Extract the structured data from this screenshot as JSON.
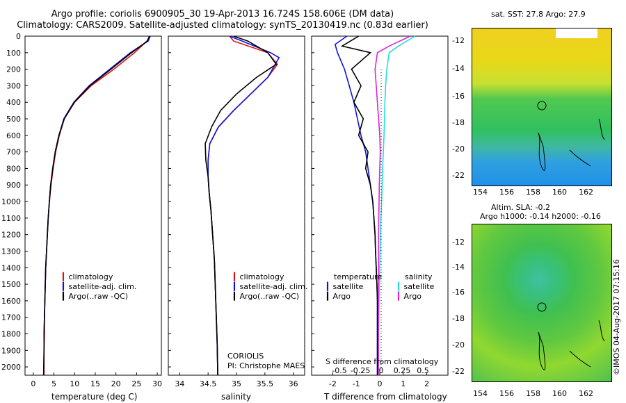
{
  "header": {
    "title_line1": "Argo profile: coriolis 6900905_30 19-Apr-2013 16.724S 158.606E (DM data)",
    "title_line2": "Climatology: CARS2009. Satellite-adjusted climatology: synTS_20130419.nc (0.83d earlier)"
  },
  "colors": {
    "climatology": "#dd1111",
    "satellite": "#1111dd",
    "argo": "#000000",
    "sal_sat": "#22dddd",
    "sal_argo": "#dd22dd"
  },
  "depth_axis": {
    "ticks": [
      "0",
      "100",
      "200",
      "300",
      "400",
      "500",
      "600",
      "700",
      "800",
      "900",
      "1000",
      "1100",
      "1200",
      "1300",
      "1400",
      "1500",
      "1600",
      "1700",
      "1800",
      "1900",
      "2000"
    ]
  },
  "panels": {
    "temperature": {
      "xlabel": "temperature (deg C)",
      "xticks": [
        "0",
        "5",
        "10",
        "15",
        "20",
        "25",
        "30"
      ],
      "legend": [
        "climatology",
        "satellite-adj. clim.",
        "Argo(..raw -QC)"
      ]
    },
    "salinity": {
      "xlabel": "salinity",
      "xticks": [
        "34",
        "34.5",
        "35",
        "35.5",
        "36"
      ],
      "legend": [
        "climatology",
        "satellite-adj. clim.",
        "Argo(..raw -QC)"
      ],
      "note1": "CORIOLIS",
      "note2": "PI: Christophe MAES"
    },
    "difference": {
      "xlabel": "T difference from climatology",
      "top_label": "S difference from climatology",
      "xticks_T": [
        "-2",
        "-1",
        "0",
        "1",
        "2"
      ],
      "xticks_S": [
        "-0.5",
        "-0.25",
        "0",
        "0.25",
        "0.5"
      ],
      "legend_temp_title": "temperature",
      "legend_sal_title": "salinity",
      "legend_temp": [
        "satellite",
        "Argo"
      ],
      "legend_sal": [
        "satellite",
        "Argo"
      ]
    }
  },
  "maps": {
    "sst": {
      "title": "sat. SST: 27.8 Argo: 27.9",
      "yticks": [
        "-12",
        "-14",
        "-16",
        "-18",
        "-20",
        "-22"
      ],
      "xticks": [
        "154",
        "156",
        "158",
        "160",
        "162"
      ]
    },
    "sla": {
      "title1": "Altim. SLA: -0.2",
      "title2": "Argo h1000: -0.14 h2000: -0.16",
      "yticks": [
        "-12",
        "-14",
        "-16",
        "-18",
        "-20",
        "-22"
      ],
      "xticks": [
        "154",
        "156",
        "158",
        "160",
        "162"
      ]
    }
  },
  "stamp": "©IMOS 04-Aug-2017 07:15:16",
  "chart_data": [
    {
      "type": "line",
      "title": "",
      "xlabel": "temperature (deg C)",
      "ylabel": "",
      "xlim": [
        -2,
        31
      ],
      "ylim": [
        2050,
        0
      ],
      "series": [
        {
          "name": "climatology",
          "x": [
            28.2,
            27.5,
            24.5,
            19.5,
            14,
            10,
            7.5,
            6.3,
            5.4,
            4.8,
            4.3,
            3.9,
            3.6,
            3.4,
            3.2,
            3.0,
            2.9,
            2.8,
            2.7,
            2.7,
            2.6,
            2.6
          ],
          "y": [
            0,
            30,
            100,
            200,
            300,
            400,
            500,
            600,
            700,
            800,
            900,
            1000,
            1100,
            1200,
            1300,
            1400,
            1500,
            1600,
            1700,
            1800,
            1900,
            2050
          ]
        },
        {
          "name": "satellite-adj. clim.",
          "x": [
            28.3,
            27.8,
            23.5,
            18.5,
            13.5,
            9.8,
            7.4,
            6.2,
            5.3,
            4.7,
            4.2,
            3.9,
            3.6,
            3.4,
            3.2,
            3.0,
            2.9,
            2.8,
            2.7,
            2.6,
            2.6,
            2.5
          ],
          "y": [
            0,
            30,
            100,
            200,
            300,
            400,
            500,
            600,
            700,
            800,
            900,
            1000,
            1100,
            1200,
            1300,
            1400,
            1500,
            1600,
            1700,
            1800,
            1900,
            2050
          ]
        },
        {
          "name": "Argo(..raw -QC)",
          "x": [
            28.1,
            27.6,
            23.8,
            18.8,
            13.7,
            9.9,
            7.5,
            6.2,
            5.3,
            4.7,
            4.2,
            3.9,
            3.6,
            3.4,
            3.2,
            3.0,
            2.9,
            2.8,
            2.7,
            2.6,
            2.6,
            2.5
          ],
          "y": [
            0,
            30,
            100,
            200,
            300,
            400,
            500,
            600,
            700,
            800,
            900,
            1000,
            1100,
            1200,
            1300,
            1400,
            1500,
            1600,
            1700,
            1800,
            1900,
            2050
          ]
        }
      ]
    },
    {
      "type": "line",
      "title": "",
      "xlabel": "salinity",
      "ylabel": "",
      "xlim": [
        33.8,
        36.2
      ],
      "ylim": [
        2050,
        0
      ],
      "series": [
        {
          "name": "climatology",
          "x": [
            34.88,
            34.95,
            35.55,
            35.72,
            35.55,
            35.25,
            34.95,
            34.68,
            34.53,
            34.5,
            34.5,
            34.52,
            34.55,
            34.57,
            34.59,
            34.61,
            34.62,
            34.63,
            34.64,
            34.65,
            34.66,
            34.67
          ],
          "y": [
            0,
            30,
            100,
            170,
            250,
            350,
            450,
            550,
            650,
            750,
            850,
            950,
            1050,
            1150,
            1250,
            1350,
            1450,
            1550,
            1650,
            1750,
            1850,
            2050
          ]
        },
        {
          "name": "satellite-adj. clim.",
          "x": [
            34.88,
            35.1,
            35.6,
            35.75,
            35.55,
            35.25,
            34.95,
            34.68,
            34.53,
            34.5,
            34.5,
            34.52,
            34.55,
            34.57,
            34.59,
            34.61,
            34.62,
            34.63,
            34.64,
            34.65,
            34.66,
            34.67
          ],
          "y": [
            0,
            30,
            100,
            130,
            250,
            350,
            450,
            550,
            650,
            750,
            850,
            950,
            1050,
            1150,
            1250,
            1350,
            1450,
            1550,
            1650,
            1750,
            1850,
            2050
          ]
        },
        {
          "name": "Argo(..raw -QC)",
          "x": [
            34.95,
            35.2,
            35.55,
            35.7,
            35.35,
            35.0,
            34.72,
            34.56,
            34.45,
            34.46,
            34.5,
            34.52,
            34.55,
            34.57,
            34.59,
            34.61,
            34.62,
            34.63,
            34.64,
            34.65,
            34.66,
            34.67
          ],
          "y": [
            0,
            30,
            100,
            170,
            250,
            350,
            450,
            550,
            650,
            750,
            850,
            950,
            1050,
            1150,
            1250,
            1350,
            1450,
            1550,
            1650,
            1750,
            1850,
            2050
          ]
        }
      ]
    },
    {
      "type": "line",
      "title": "",
      "xlabel": "T difference from climatology",
      "ylabel": "",
      "xlim": [
        -2.9,
        2.9
      ],
      "ylim": [
        2050,
        0
      ],
      "series": [
        {
          "name": "temperature satellite",
          "x": [
            -1.4,
            -1.9,
            -1.8,
            -1.5,
            -1.3,
            -1.1,
            -0.95,
            -0.8,
            -0.6,
            -0.5,
            -0.4,
            -0.3,
            -0.25,
            -0.2,
            -0.18,
            -0.15,
            -0.12,
            -0.1,
            -0.1,
            -0.1
          ],
          "y": [
            0,
            50,
            100,
            200,
            300,
            400,
            500,
            600,
            700,
            800,
            900,
            1000,
            1100,
            1200,
            1300,
            1400,
            1500,
            1600,
            1800,
            2050
          ]
        },
        {
          "name": "temperature Argo",
          "x": [
            -0.9,
            -1.6,
            -0.4,
            -1.2,
            -0.8,
            -1.1,
            -0.7,
            -0.9,
            -0.5,
            -0.6,
            -0.4,
            -0.3,
            -0.25,
            -0.2,
            -0.18,
            -0.15,
            -0.12,
            -0.1,
            -0.1,
            -0.1
          ],
          "y": [
            0,
            60,
            100,
            200,
            300,
            400,
            500,
            600,
            700,
            800,
            900,
            1000,
            1100,
            1200,
            1300,
            1400,
            1500,
            1600,
            1800,
            2050
          ]
        },
        {
          "name": "salinity satellite",
          "x": [
            1.5,
            0.8,
            0.4,
            0.3,
            0.25,
            0.22,
            0.2,
            0.18,
            0.15,
            0.12,
            0.1,
            0.08,
            0.05,
            0.03,
            0.0,
            -0.03,
            -0.05,
            -0.05,
            -0.05
          ],
          "y": [
            0,
            60,
            100,
            200,
            300,
            400,
            500,
            600,
            700,
            800,
            900,
            1000,
            1100,
            1200,
            1400,
            1600,
            1800,
            1900,
            2050
          ]
        },
        {
          "name": "salinity Argo",
          "x": [
            1.3,
            0.4,
            -0.1,
            -0.2,
            -0.15,
            -0.1,
            -0.05,
            0.0,
            0.02,
            0.0,
            -0.02,
            -0.03,
            -0.04,
            -0.05,
            -0.05,
            -0.06,
            -0.06,
            -0.06,
            -0.06
          ],
          "y": [
            0,
            60,
            100,
            200,
            300,
            400,
            500,
            600,
            700,
            800,
            900,
            1000,
            1100,
            1200,
            1400,
            1600,
            1800,
            1900,
            2050
          ]
        }
      ]
    }
  ]
}
